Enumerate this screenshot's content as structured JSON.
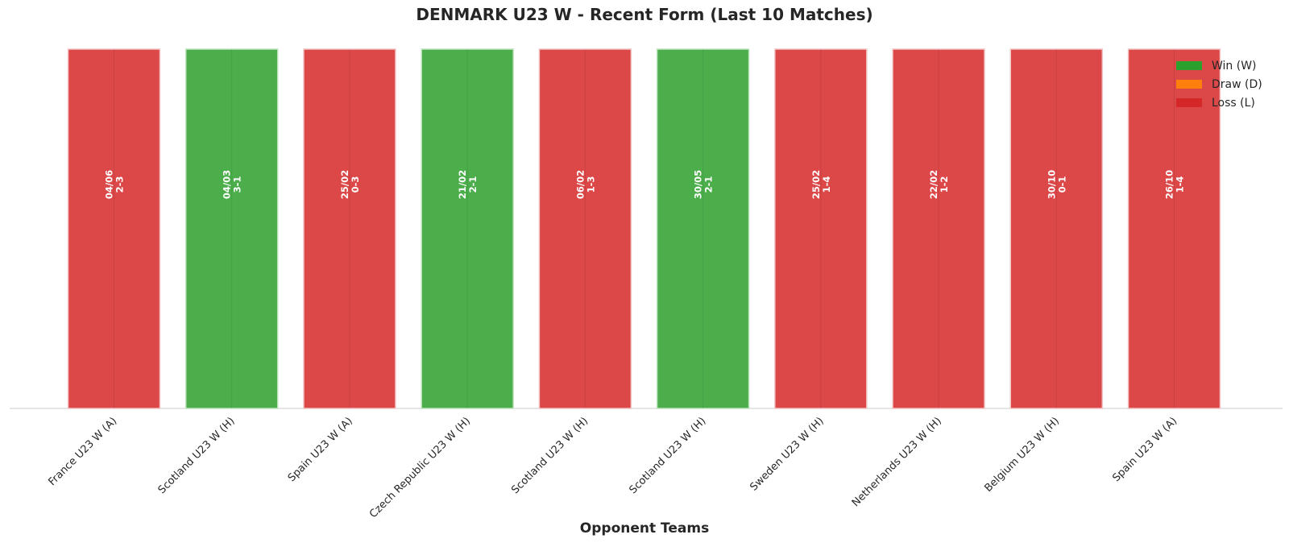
{
  "chart_data": {
    "type": "bar",
    "title": "DENMARK U23 W - Recent Form (Last 10 Matches)",
    "xlabel": "Opponent Teams",
    "ylabel": "",
    "grid": false,
    "legend_placement": "top-right",
    "legend": [
      {
        "label": "Win (W)",
        "color": "#2ca02c"
      },
      {
        "label": "Draw (D)",
        "color": "#ff7f0e"
      },
      {
        "label": "Loss (L)",
        "color": "#d62728"
      }
    ],
    "colors": {
      "W": "#2ca02c",
      "D": "#ff7f0e",
      "L": "#d62728"
    },
    "categories": [
      "France U23 W (A)",
      "Scotland U23 W (H)",
      "Spain U23 W (A)",
      "Czech Republic U23 W (H)",
      "Scotland U23 W (H)",
      "Scotland U23 W (H)",
      "Sweden U23 W (H)",
      "Netherlands U23 W (H)",
      "Belgium U23 W (H)",
      "Spain U23 W (A)"
    ],
    "values": [
      1,
      1,
      1,
      1,
      1,
      1,
      1,
      1,
      1,
      1
    ],
    "results": [
      "L",
      "W",
      "L",
      "W",
      "L",
      "W",
      "L",
      "L",
      "L",
      "L"
    ],
    "dates": [
      "04/06",
      "04/03",
      "25/02",
      "21/02",
      "06/02",
      "30/05",
      "25/02",
      "22/02",
      "30/10",
      "26/10"
    ],
    "scores": [
      "2-3",
      "3-1",
      "0-3",
      "2-1",
      "1-3",
      "2-1",
      "1-4",
      "1-2",
      "0-1",
      "1-4"
    ]
  }
}
